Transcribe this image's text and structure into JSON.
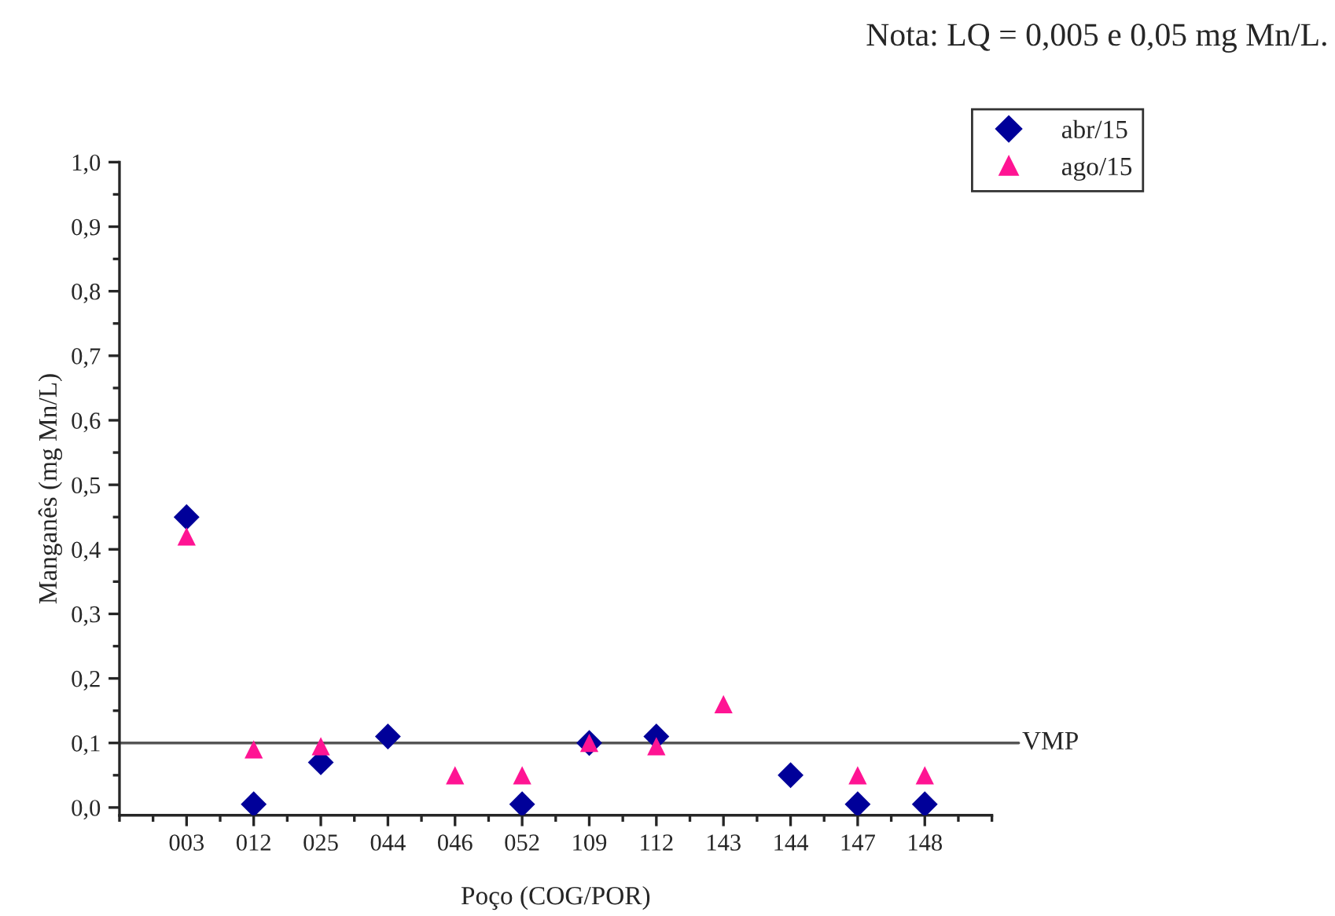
{
  "chart_data": {
    "type": "scatter",
    "annotations": [
      "Nota: LQ = 0,005 e 0,05 mg Mn/L."
    ],
    "xlabel": "Poço (COG/POR)",
    "ylabel": "Manganês (mg Mn/L)",
    "categories": [
      "003",
      "012",
      "025",
      "044",
      "046",
      "052",
      "109",
      "112",
      "143",
      "144",
      "147",
      "148"
    ],
    "series": [
      {
        "name": "abr/15",
        "color": "#000099",
        "marker": "diamond",
        "values": [
          0.45,
          0.005,
          0.07,
          0.11,
          null,
          0.005,
          0.1,
          0.11,
          null,
          0.05,
          0.005,
          0.005
        ]
      },
      {
        "name": "ago/15",
        "color": "#ff1493",
        "marker": "triangle",
        "values": [
          0.42,
          0.09,
          0.095,
          null,
          0.05,
          0.05,
          0.1,
          0.095,
          0.16,
          null,
          0.05,
          0.05
        ]
      }
    ],
    "ylim": [
      -0.012,
      1.0
    ],
    "yticks": [
      {
        "value": 0,
        "label": "0,0"
      },
      {
        "value": 0.1,
        "label": "0,1"
      },
      {
        "value": 0.2,
        "label": "0,2"
      },
      {
        "value": 0.3,
        "label": "0,3"
      },
      {
        "value": 0.4,
        "label": "0,4"
      },
      {
        "value": 0.5,
        "label": "0,5"
      },
      {
        "value": 0.6,
        "label": "0,6"
      },
      {
        "value": 0.7,
        "label": "0,7"
      },
      {
        "value": 0.8,
        "label": "0,8"
      },
      {
        "value": 0.9,
        "label": "0,9"
      },
      {
        "value": 1.0,
        "label": "1,0"
      }
    ],
    "ref_lines": [
      {
        "axis": "y",
        "value": 0.1,
        "label": "VMP",
        "color": "#555555"
      }
    ],
    "grid": false,
    "legend": "top right"
  }
}
